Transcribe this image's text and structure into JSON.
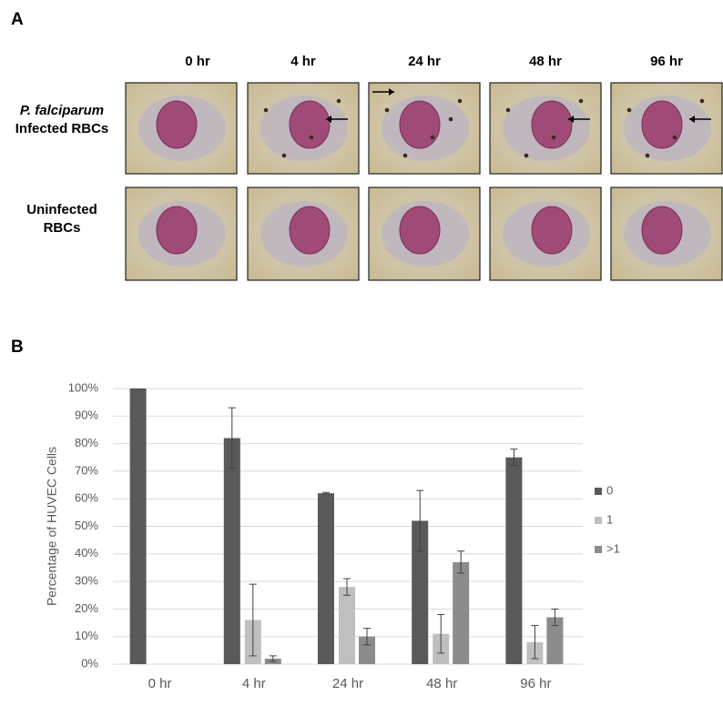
{
  "panel_a": {
    "label": "A",
    "columns": [
      "0 hr",
      "4 hr",
      "24 hr",
      "48 hr",
      "96 hr"
    ],
    "rows": [
      {
        "lines": [
          "P. falciparum",
          "Infected RBCs"
        ]
      },
      {
        "lines": [
          "Uninfected",
          "RBCs"
        ]
      }
    ]
  },
  "panel_b": {
    "label": "B"
  },
  "chart_data": {
    "type": "bar",
    "y_label": "Percentage of HUVEC Cells",
    "categories": [
      "0 hr",
      "4 hr",
      "24 hr",
      "48 hr",
      "96 hr"
    ],
    "series": [
      {
        "name": "0",
        "color": "#595959",
        "values": [
          100,
          82,
          62,
          52,
          75
        ],
        "errors": [
          null,
          11,
          0.3,
          11,
          3
        ]
      },
      {
        "name": "1",
        "color": "#bfbfbf",
        "values": [
          0,
          16,
          28,
          11,
          8
        ],
        "errors": [
          null,
          13,
          3,
          7,
          6
        ]
      },
      {
        "name": ">1",
        "color": "#8c8c8c",
        "values": [
          0,
          2,
          10,
          37,
          17
        ],
        "errors": [
          null,
          1,
          3,
          4,
          3
        ]
      }
    ],
    "ylim": [
      0,
      100
    ],
    "yticks": [
      {
        "value": 0,
        "label": "0%"
      },
      {
        "value": 10,
        "label": "10%"
      },
      {
        "value": 20,
        "label": "20%"
      },
      {
        "value": 30,
        "label": "30%"
      },
      {
        "value": 40,
        "label": "40%"
      },
      {
        "value": 50,
        "label": "50%"
      },
      {
        "value": 60,
        "label": "60%"
      },
      {
        "value": 70,
        "label": "70%"
      },
      {
        "value": 80,
        "label": "80%"
      },
      {
        "value": 90,
        "label": "90%"
      },
      {
        "value": 100,
        "label": "100%"
      }
    ],
    "grid": true,
    "legend": "right"
  }
}
